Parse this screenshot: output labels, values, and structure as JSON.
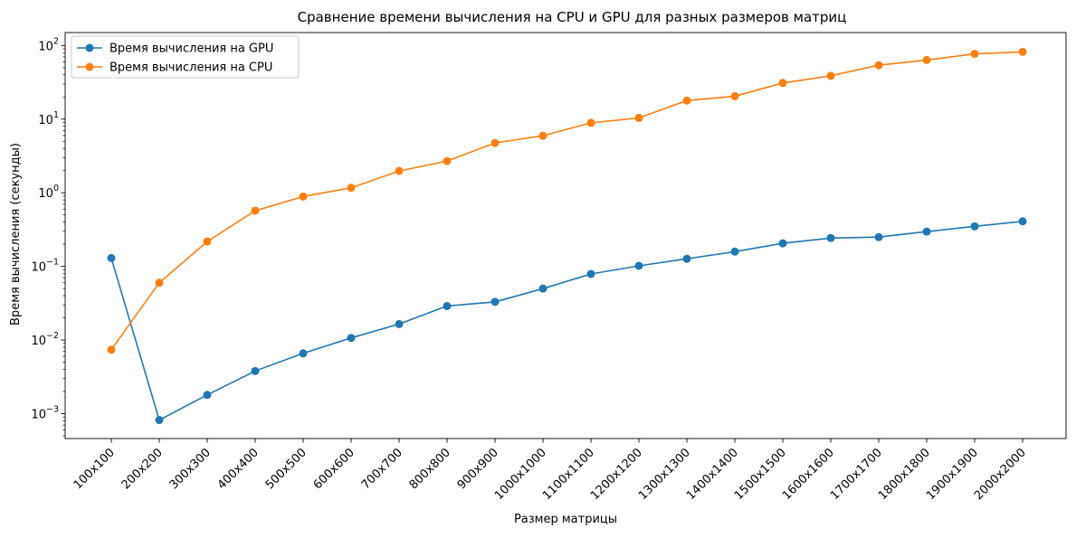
{
  "chart_data": {
    "type": "line",
    "title": "Сравнение времени вычисления на CPU и GPU для разных размеров матриц",
    "xlabel": "Размер матрицы",
    "ylabel": "Время вычисления (секунды)",
    "yscale": "log",
    "ylim": [
      0.00046,
      150
    ],
    "yticks": [
      {
        "value": 0.001,
        "base": "10",
        "exp": "−3"
      },
      {
        "value": 0.01,
        "base": "10",
        "exp": "−2"
      },
      {
        "value": 0.1,
        "base": "10",
        "exp": "−1"
      },
      {
        "value": 1,
        "base": "10",
        "exp": "0"
      },
      {
        "value": 10,
        "base": "10",
        "exp": "1"
      },
      {
        "value": 100,
        "base": "10",
        "exp": "2"
      }
    ],
    "grid": false,
    "legend_position": "top-left",
    "categories": [
      "100x100",
      "200x200",
      "300x300",
      "400x400",
      "500x500",
      "600x600",
      "700x700",
      "800x800",
      "900x900",
      "1000x1000",
      "1100x1100",
      "1200x1200",
      "1300x1300",
      "1400x1400",
      "1500x1500",
      "1600x1600",
      "1700x1700",
      "1800x1800",
      "1900x1900",
      "2000x2000"
    ],
    "series": [
      {
        "name": "Время вычисления на GPU",
        "color": "#1f77b4",
        "values": [
          0.13,
          0.00082,
          0.0018,
          0.0038,
          0.0066,
          0.0107,
          0.0165,
          0.029,
          0.033,
          0.05,
          0.079,
          0.102,
          0.127,
          0.159,
          0.206,
          0.243,
          0.25,
          0.297,
          0.35,
          0.41
        ]
      },
      {
        "name": "Время вычисления на CPU",
        "color": "#ff7f0e",
        "values": [
          0.0074,
          0.06,
          0.218,
          0.57,
          0.89,
          1.17,
          1.98,
          2.7,
          4.75,
          5.95,
          8.9,
          10.4,
          17.9,
          20.5,
          31.0,
          38.8,
          54.0,
          63.5,
          77.0,
          82.0
        ]
      }
    ]
  }
}
